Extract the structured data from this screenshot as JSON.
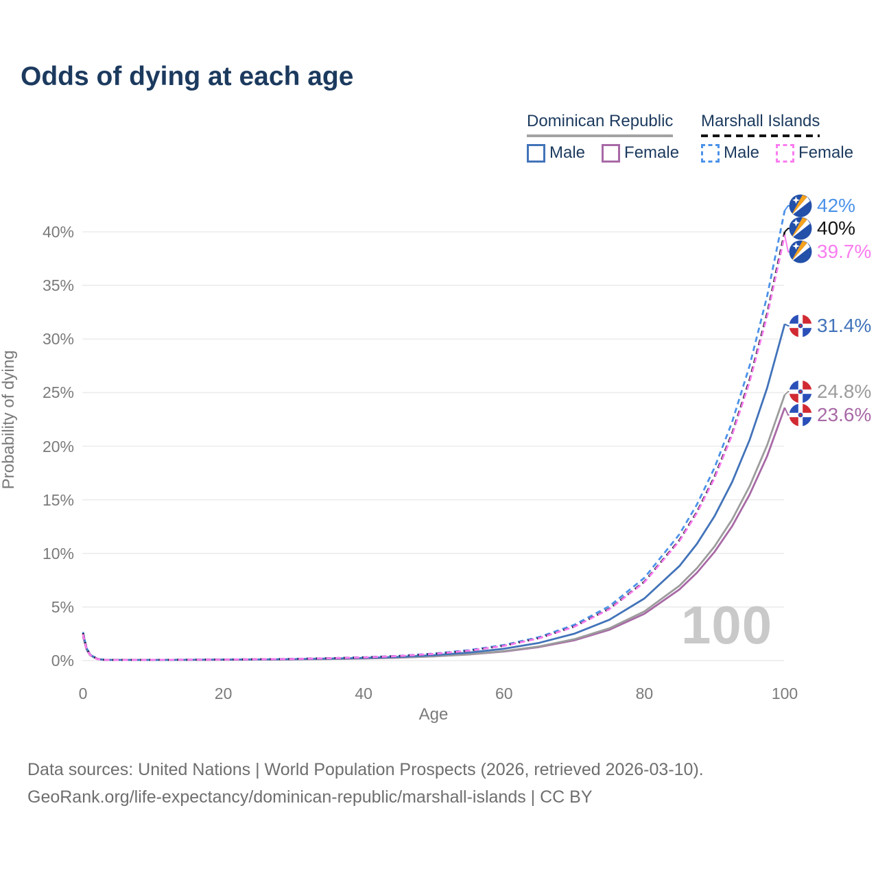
{
  "title": "Odds of dying at each age",
  "legend": {
    "groups": [
      {
        "title": "Dominican Republic",
        "line_style": "solid",
        "items": [
          {
            "label": "Male",
            "color": "#4273b9",
            "dashed": false
          },
          {
            "label": "Female",
            "color": "#a869a6",
            "dashed": false
          }
        ]
      },
      {
        "title": "Marshall Islands",
        "line_style": "dashed",
        "items": [
          {
            "label": "Male",
            "color": "#4b92e9",
            "dashed": true
          },
          {
            "label": "Female",
            "color": "#fa7cf0",
            "dashed": true
          }
        ]
      }
    ]
  },
  "colors": {
    "title_text": "#1c3a5e",
    "axis_text": "#7a7a7a",
    "grid_line": "#ececec",
    "watermark": "#c9c9c9",
    "footer_text": "#6e6e6e",
    "legend_text": "#1c3a5e",
    "dr_underline": "#a3a3a3",
    "mi_underline": "#141414"
  },
  "watermark": "100",
  "footer": {
    "line1": "Data sources: United Nations | World Population Prospects (2026, retrieved 2026-03-10).",
    "line2": "GeoRank.org/life-expectancy/dominican-republic/marshall-islands | CC BY"
  },
  "chart_data": {
    "type": "line",
    "title": "Odds of dying at each age",
    "xlabel": "Age",
    "ylabel": "Probability of dying",
    "xlim": [
      0,
      100
    ],
    "ylim": [
      0,
      42
    ],
    "xticks": [
      0,
      20,
      40,
      60,
      80,
      100
    ],
    "yticks": [
      0,
      5,
      10,
      15,
      20,
      25,
      30,
      35,
      40
    ],
    "ytick_suffix": "%",
    "grid": "horizontal",
    "legend_position": "top-right",
    "hover_age_indicator": "100",
    "series": [
      {
        "name": "Marshall Islands Male",
        "country": "Marshall Islands",
        "sex": "Male",
        "style": "dashed",
        "color": "#4b92e9",
        "flag": "marshall-islands",
        "end_label": "42%",
        "end_value": 42,
        "points": [
          [
            0,
            2.66
          ],
          [
            0.5,
            1.22
          ],
          [
            1,
            0.58
          ],
          [
            2,
            0.17
          ],
          [
            3,
            0.08
          ],
          [
            5,
            0.06
          ],
          [
            10,
            0.07
          ],
          [
            15,
            0.08
          ],
          [
            20,
            0.1
          ],
          [
            25,
            0.12
          ],
          [
            30,
            0.16
          ],
          [
            35,
            0.22
          ],
          [
            40,
            0.31
          ],
          [
            45,
            0.44
          ],
          [
            50,
            0.65
          ],
          [
            55,
            0.97
          ],
          [
            60,
            1.45
          ],
          [
            65,
            2.19
          ],
          [
            70,
            3.33
          ],
          [
            75,
            5.07
          ],
          [
            80,
            7.72
          ],
          [
            85,
            11.78
          ],
          [
            87.5,
            14.57
          ],
          [
            90,
            18.0
          ],
          [
            92.5,
            22.25
          ],
          [
            95,
            27.51
          ],
          [
            97.5,
            34.01
          ],
          [
            100,
            42.0
          ]
        ]
      },
      {
        "name": "Marshall Islands Both sexes",
        "country": "Marshall Islands",
        "sex": "Both",
        "style": "dashed",
        "color": "#141414",
        "flag": "marshall-islands",
        "end_label": "40%",
        "end_value": 40,
        "points": [
          [
            0,
            2.56
          ],
          [
            0.5,
            1.17
          ],
          [
            1,
            0.56
          ],
          [
            2,
            0.16
          ],
          [
            3,
            0.07
          ],
          [
            5,
            0.06
          ],
          [
            10,
            0.07
          ],
          [
            15,
            0.08
          ],
          [
            20,
            0.09
          ],
          [
            25,
            0.12
          ],
          [
            30,
            0.15
          ],
          [
            35,
            0.21
          ],
          [
            40,
            0.29
          ],
          [
            45,
            0.42
          ],
          [
            50,
            0.62
          ],
          [
            55,
            0.92
          ],
          [
            60,
            1.38
          ],
          [
            65,
            2.09
          ],
          [
            70,
            3.17
          ],
          [
            75,
            4.83
          ],
          [
            80,
            7.36
          ],
          [
            85,
            11.23
          ],
          [
            87.5,
            13.87
          ],
          [
            90,
            17.15
          ],
          [
            92.5,
            21.19
          ],
          [
            95,
            26.2
          ],
          [
            97.5,
            32.39
          ],
          [
            100,
            40.0
          ]
        ]
      },
      {
        "name": "Marshall Islands Female",
        "country": "Marshall Islands",
        "sex": "Female",
        "style": "dashed",
        "color": "#fa7cf0",
        "flag": "marshall-islands",
        "end_label": "39.7%",
        "end_value": 39.7,
        "points": [
          [
            0,
            2.46
          ],
          [
            0.5,
            1.13
          ],
          [
            1,
            0.54
          ],
          [
            2,
            0.15
          ],
          [
            3,
            0.07
          ],
          [
            5,
            0.06
          ],
          [
            10,
            0.07
          ],
          [
            15,
            0.08
          ],
          [
            20,
            0.09
          ],
          [
            25,
            0.12
          ],
          [
            30,
            0.15
          ],
          [
            35,
            0.21
          ],
          [
            40,
            0.29
          ],
          [
            45,
            0.42
          ],
          [
            50,
            0.62
          ],
          [
            55,
            0.92
          ],
          [
            60,
            1.37
          ],
          [
            65,
            2.08
          ],
          [
            70,
            3.15
          ],
          [
            75,
            4.79
          ],
          [
            80,
            7.3
          ],
          [
            85,
            11.14
          ],
          [
            87.5,
            13.77
          ],
          [
            90,
            17.02
          ],
          [
            92.5,
            21.04
          ],
          [
            95,
            26.0
          ],
          [
            97.5,
            32.15
          ],
          [
            100,
            39.7
          ]
        ]
      },
      {
        "name": "Dominican Republic Male",
        "country": "Dominican Republic",
        "sex": "Male",
        "style": "solid",
        "color": "#4273b9",
        "flag": "dominican-republic",
        "end_label": "31.4%",
        "end_value": 31.4,
        "points": [
          [
            0,
            2.56
          ],
          [
            0.5,
            1.17
          ],
          [
            1,
            0.56
          ],
          [
            2,
            0.16
          ],
          [
            3,
            0.07
          ],
          [
            5,
            0.06
          ],
          [
            10,
            0.06
          ],
          [
            15,
            0.07
          ],
          [
            20,
            0.09
          ],
          [
            25,
            0.1
          ],
          [
            30,
            0.13
          ],
          [
            35,
            0.18
          ],
          [
            40,
            0.24
          ],
          [
            45,
            0.34
          ],
          [
            50,
            0.5
          ],
          [
            55,
            0.74
          ],
          [
            60,
            1.1
          ],
          [
            65,
            1.65
          ],
          [
            70,
            2.5
          ],
          [
            75,
            3.8
          ],
          [
            80,
            5.79
          ],
          [
            85,
            8.82
          ],
          [
            87.5,
            10.9
          ],
          [
            90,
            13.47
          ],
          [
            92.5,
            16.65
          ],
          [
            95,
            20.58
          ],
          [
            97.5,
            25.44
          ],
          [
            100,
            31.4
          ]
        ]
      },
      {
        "name": "Dominican Republic Both sexes",
        "country": "Dominican Republic",
        "sex": "Both",
        "style": "solid",
        "color": "#9c9c9c",
        "flag": "dominican-republic",
        "end_label": "24.8%",
        "end_value": 24.8,
        "points": [
          [
            0,
            2.41
          ],
          [
            0.5,
            1.11
          ],
          [
            1,
            0.53
          ],
          [
            2,
            0.15
          ],
          [
            3,
            0.07
          ],
          [
            5,
            0.06
          ],
          [
            10,
            0.06
          ],
          [
            15,
            0.07
          ],
          [
            20,
            0.08
          ],
          [
            25,
            0.09
          ],
          [
            30,
            0.12
          ],
          [
            35,
            0.15
          ],
          [
            40,
            0.2
          ],
          [
            45,
            0.28
          ],
          [
            50,
            0.4
          ],
          [
            55,
            0.59
          ],
          [
            60,
            0.88
          ],
          [
            65,
            1.32
          ],
          [
            70,
            1.99
          ],
          [
            75,
            3.01
          ],
          [
            80,
            4.58
          ],
          [
            85,
            6.98
          ],
          [
            87.5,
            8.62
          ],
          [
            90,
            10.65
          ],
          [
            92.5,
            13.16
          ],
          [
            95,
            16.26
          ],
          [
            97.5,
            20.1
          ],
          [
            100,
            24.8
          ]
        ]
      },
      {
        "name": "Dominican Republic Female",
        "country": "Dominican Republic",
        "sex": "Female",
        "style": "solid",
        "color": "#a869a6",
        "flag": "dominican-republic",
        "end_label": "23.6%",
        "end_value": 23.6,
        "points": [
          [
            0,
            2.26
          ],
          [
            0.5,
            1.04
          ],
          [
            1,
            0.5
          ],
          [
            2,
            0.14
          ],
          [
            3,
            0.06
          ],
          [
            5,
            0.06
          ],
          [
            10,
            0.06
          ],
          [
            15,
            0.07
          ],
          [
            20,
            0.08
          ],
          [
            25,
            0.09
          ],
          [
            30,
            0.11
          ],
          [
            35,
            0.15
          ],
          [
            40,
            0.19
          ],
          [
            45,
            0.27
          ],
          [
            50,
            0.39
          ],
          [
            55,
            0.57
          ],
          [
            60,
            0.84
          ],
          [
            65,
            1.26
          ],
          [
            70,
            1.89
          ],
          [
            75,
            2.87
          ],
          [
            80,
            4.36
          ],
          [
            85,
            6.64
          ],
          [
            87.5,
            8.2
          ],
          [
            90,
            10.14
          ],
          [
            92.5,
            12.53
          ],
          [
            95,
            15.48
          ],
          [
            97.5,
            19.08
          ],
          [
            100,
            23.6
          ]
        ]
      }
    ]
  }
}
